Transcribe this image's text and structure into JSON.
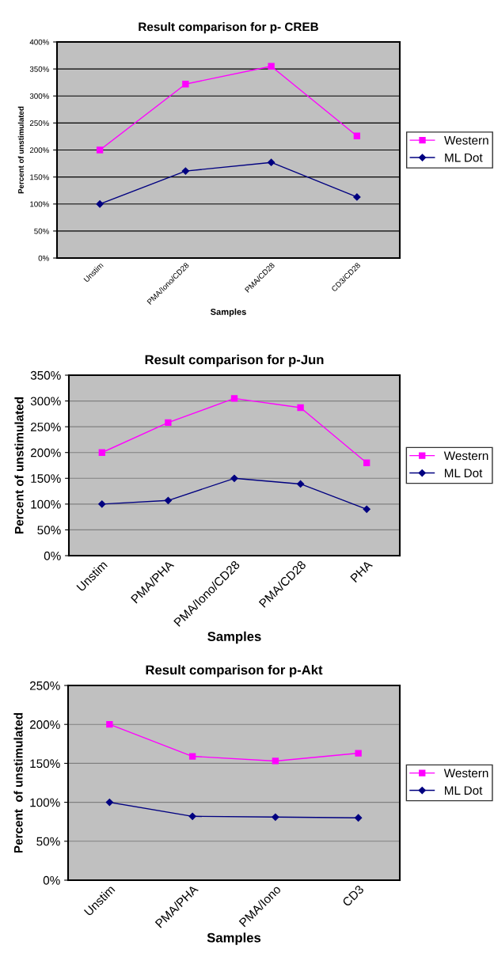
{
  "chart_data": [
    {
      "type": "line",
      "title": "Result comparison for p- CREB",
      "xlabel": "Samples",
      "ylabel": "Percent of unstimulated",
      "categories": [
        "Unstim",
        "PMA/Iono/CD28",
        "PMA/CD28",
        "CD3/CD28"
      ],
      "series": [
        {
          "name": "Western",
          "color": "#ff00ff",
          "marker": "square",
          "values": [
            200,
            322,
            355,
            226
          ]
        },
        {
          "name": "ML Dot",
          "color": "#000080",
          "marker": "diamond",
          "values": [
            100,
            161,
            177,
            113
          ]
        }
      ],
      "ylim": [
        0,
        400
      ],
      "yticks": [
        {
          "value": 0,
          "label": "0%"
        },
        {
          "value": 50,
          "label": "50%"
        },
        {
          "value": 100,
          "label": "100%"
        },
        {
          "value": 150,
          "label": "150%"
        },
        {
          "value": 200,
          "label": "200%"
        },
        {
          "value": 250,
          "label": "250%"
        },
        {
          "value": 300,
          "label": "300%"
        },
        {
          "value": 350,
          "label": "350%"
        },
        {
          "value": 400,
          "label": "400%"
        }
      ],
      "grid": "y",
      "legend": "right"
    },
    {
      "type": "line",
      "title": "Result comparison for p-Jun",
      "xlabel": "Samples",
      "ylabel": "Percent of unstimulated",
      "categories": [
        "Unstim",
        "PMA/PHA",
        "PMA/Iono/CD28",
        "PMA/CD28",
        "PHA"
      ],
      "series": [
        {
          "name": "Western",
          "color": "#ff00ff",
          "marker": "square",
          "values": [
            200,
            258,
            305,
            287,
            180
          ]
        },
        {
          "name": "ML Dot",
          "color": "#000080",
          "marker": "diamond",
          "values": [
            100,
            107,
            150,
            139,
            90
          ]
        }
      ],
      "ylim": [
        0,
        350
      ],
      "yticks": [
        {
          "value": 0,
          "label": "0%"
        },
        {
          "value": 50,
          "label": "50%"
        },
        {
          "value": 100,
          "label": "100%"
        },
        {
          "value": 150,
          "label": "150%"
        },
        {
          "value": 200,
          "label": "200%"
        },
        {
          "value": 250,
          "label": "250%"
        },
        {
          "value": 300,
          "label": "300%"
        },
        {
          "value": 350,
          "label": "350%"
        }
      ],
      "grid": "y",
      "legend": "right"
    },
    {
      "type": "line",
      "title": "Result comparison for p-Akt",
      "xlabel": "Samples",
      "ylabel": "Percent  of unstimulated",
      "categories": [
        "Unstim",
        "PMA/PHA",
        "PMA/Iono",
        "CD3"
      ],
      "series": [
        {
          "name": "Western",
          "color": "#ff00ff",
          "marker": "square",
          "values": [
            200,
            159,
            153,
            163
          ]
        },
        {
          "name": "ML Dot",
          "color": "#000080",
          "marker": "diamond",
          "values": [
            100,
            82,
            81,
            80
          ]
        }
      ],
      "ylim": [
        0,
        250
      ],
      "yticks": [
        {
          "value": 0,
          "label": "0%"
        },
        {
          "value": 50,
          "label": "50%"
        },
        {
          "value": 100,
          "label": "100%"
        },
        {
          "value": 150,
          "label": "150%"
        },
        {
          "value": 200,
          "label": "200%"
        },
        {
          "value": 250,
          "label": "250%"
        }
      ],
      "grid": "y",
      "legend": "right"
    }
  ]
}
